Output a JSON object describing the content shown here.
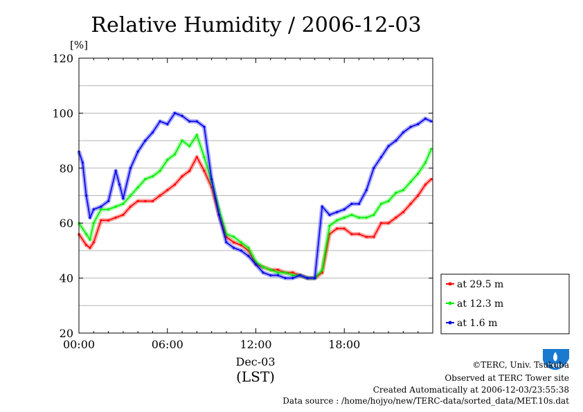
{
  "chart_data": {
    "type": "line",
    "title": "Relative Humidity / 2006-12-03",
    "ylabel": "[%]",
    "xlabel_date": "Dec-03",
    "xlabel_tz": "(LST)",
    "ylim": [
      20,
      120
    ],
    "y_ticks": [
      20,
      40,
      60,
      80,
      100,
      120
    ],
    "xlim_hours": [
      0,
      24
    ],
    "x_ticks": [
      {
        "hour": 0,
        "label": "00:00"
      },
      {
        "hour": 6,
        "label": "06:00"
      },
      {
        "hour": 12,
        "label": "12:00"
      },
      {
        "hour": 18,
        "label": "18:00"
      }
    ],
    "grid": true,
    "legend_placement": "right",
    "series": [
      {
        "name": "at 29.5 m",
        "color": "#ff0000",
        "x": [
          0,
          0.5,
          0.75,
          1,
          1.5,
          2,
          2.5,
          3,
          3.5,
          4,
          4.5,
          5,
          5.5,
          6,
          6.5,
          7,
          7.5,
          8,
          8.5,
          9,
          9.5,
          10,
          10.5,
          11,
          11.5,
          12,
          12.5,
          13,
          13.5,
          14,
          14.5,
          15,
          15.5,
          16,
          16.5,
          17,
          17.5,
          18,
          18.5,
          19,
          19.5,
          20,
          20.5,
          21,
          21.5,
          22,
          22.5,
          23,
          23.5,
          23.9
        ],
        "values": [
          56,
          52,
          51,
          53,
          61,
          61,
          62,
          63,
          66,
          68,
          68,
          68,
          70,
          72,
          74,
          77,
          79,
          84,
          79,
          73,
          63,
          55,
          53,
          52,
          50,
          45,
          44,
          43,
          43,
          42,
          42,
          41,
          40,
          40,
          42,
          56,
          58,
          58,
          56,
          56,
          55,
          55,
          60,
          60,
          62,
          64,
          67,
          70,
          74,
          76
        ]
      },
      {
        "name": "at 12.3 m",
        "color": "#00ee00",
        "x": [
          0,
          0.5,
          0.75,
          1,
          1.5,
          2,
          2.5,
          3,
          3.5,
          4,
          4.5,
          5,
          5.5,
          6,
          6.5,
          7,
          7.5,
          8,
          8.5,
          9,
          9.5,
          10,
          10.5,
          11,
          11.5,
          12,
          12.5,
          13,
          13.5,
          14,
          14.5,
          15,
          15.5,
          16,
          16.5,
          17,
          17.5,
          18,
          18.5,
          19,
          19.5,
          20,
          20.5,
          21,
          21.5,
          22,
          22.5,
          23,
          23.5,
          23.9
        ],
        "values": [
          60,
          56,
          54,
          60,
          65,
          65,
          66,
          67,
          70,
          73,
          76,
          77,
          79,
          83,
          85,
          90,
          88,
          92,
          84,
          75,
          65,
          56,
          55,
          53,
          51,
          46,
          44,
          43,
          42,
          42,
          41,
          41,
          40,
          40,
          43,
          59,
          61,
          62,
          63,
          62,
          62,
          63,
          67,
          68,
          71,
          72,
          75,
          78,
          82,
          87
        ]
      },
      {
        "name": "at 1.6 m",
        "color": "#0000ee",
        "x": [
          0,
          0.25,
          0.5,
          0.75,
          1,
          1.5,
          2,
          2.5,
          2.75,
          3,
          3.5,
          4,
          4.5,
          5,
          5.5,
          6,
          6.5,
          7,
          7.5,
          8,
          8.5,
          9,
          9.5,
          10,
          10.5,
          11,
          11.5,
          12,
          12.5,
          13,
          13.5,
          14,
          14.5,
          15,
          15.5,
          16,
          16.5,
          17,
          17.5,
          18,
          18.5,
          19,
          19.5,
          20,
          20.5,
          21,
          21.5,
          22,
          22.5,
          23,
          23.5,
          23.9
        ],
        "values": [
          86,
          82,
          70,
          62,
          65,
          66,
          68,
          79,
          74,
          69,
          80,
          86,
          90,
          93,
          97,
          96,
          100,
          99,
          97,
          97,
          95,
          76,
          63,
          53,
          51,
          50,
          48,
          45,
          42,
          41,
          41,
          40,
          40,
          41,
          40,
          40,
          66,
          63,
          64,
          65,
          67,
          67,
          72,
          80,
          84,
          88,
          90,
          93,
          95,
          96,
          98,
          97
        ]
      }
    ]
  },
  "footer": {
    "copyright": "©TERC, Univ. Tsukuba",
    "site": "Observed at TERC Tower site",
    "created": "Created Automatically at 2006-12-03/23:55:38",
    "source": "Data source : /home/hojyo/new/TERC-data/sorted_data/MET.10s.dat"
  },
  "logo": {
    "text": "TERC",
    "color": "#1a7ad0"
  }
}
